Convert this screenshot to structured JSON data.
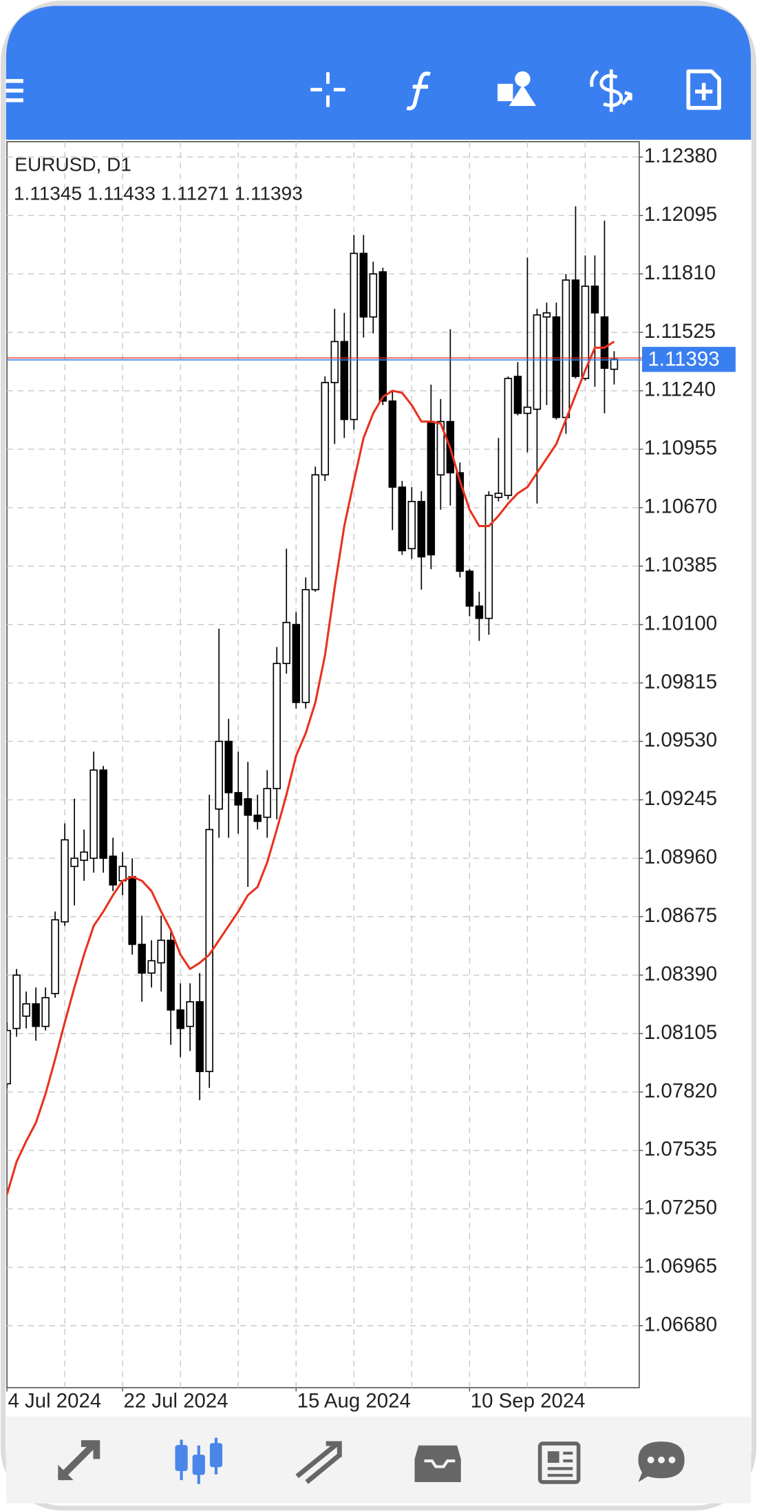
{
  "chart_data": {
    "type": "candlestick",
    "title": "EURUSD, D1",
    "ohlc_text": "1.11345 1.11433 1.11271 1.11393",
    "categories": [
      "4 Jul 2024",
      null,
      null,
      null,
      null,
      null,
      null,
      null,
      null,
      null,
      null,
      null,
      "22 Jul 2024",
      null,
      null,
      null,
      null,
      null,
      null,
      null,
      null,
      null,
      null,
      null,
      null,
      null,
      null,
      null,
      null,
      null,
      "15 Aug 2024",
      null,
      null,
      null,
      null,
      null,
      null,
      null,
      null,
      null,
      null,
      null,
      null,
      null,
      null,
      null,
      null,
      null,
      "10 Sep 2024",
      null,
      null,
      null,
      null,
      null,
      null,
      null,
      null,
      null,
      null,
      null,
      null,
      null,
      null,
      null
    ],
    "open": [
      1.0786,
      1.0813,
      1.0819,
      1.0825,
      1.0814,
      1.083,
      1.0865,
      1.0892,
      1.0895,
      1.0896,
      1.0939,
      1.0897,
      1.0885,
      1.0887,
      1.0854,
      1.084,
      1.0845,
      1.0856,
      1.0822,
      1.0814,
      1.0826,
      1.0792,
      1.092,
      1.0953,
      1.0928,
      1.0925,
      1.0917,
      1.0916,
      1.093,
      1.0991,
      1.101,
      1.0972,
      1.1027,
      1.1083,
      1.1128,
      1.1148,
      1.111,
      1.1191,
      1.116,
      1.1182,
      1.1119,
      1.1077,
      1.1047,
      1.107,
      1.1109,
      1.1083,
      1.1109,
      1.1084,
      1.1036,
      1.1019,
      1.1013,
      1.1072,
      1.1073,
      1.1131,
      1.1113,
      1.1115,
      1.116,
      1.116,
      1.1111,
      1.1178,
      1.113,
      1.1175,
      1.116,
      1.11345
    ],
    "high": [
      1.0816,
      1.0842,
      1.0831,
      1.0833,
      1.0833,
      1.087,
      1.0913,
      1.0925,
      1.091,
      1.0948,
      1.0941,
      1.0906,
      1.0899,
      1.0896,
      1.0868,
      1.0856,
      1.0868,
      1.0861,
      1.0835,
      1.0835,
      1.084,
      1.0927,
      1.1008,
      1.0964,
      1.0948,
      1.0943,
      1.0927,
      1.0939,
      1.0999,
      1.1047,
      1.1016,
      1.1033,
      1.1087,
      1.1131,
      1.1164,
      1.1162,
      1.12,
      1.12,
      1.1187,
      1.1184,
      1.1124,
      1.108,
      1.1077,
      1.1075,
      1.1127,
      1.112,
      1.1154,
      1.1089,
      1.1037,
      1.1026,
      1.1075,
      1.1101,
      1.1131,
      1.1138,
      1.1189,
      1.1164,
      1.1167,
      1.1167,
      1.1181,
      1.1214,
      1.119,
      1.119,
      1.1207,
      1.11433
    ],
    "low": [
      1.0784,
      1.0809,
      1.0813,
      1.0807,
      1.0812,
      1.0828,
      1.0863,
      1.0873,
      1.0885,
      1.0889,
      1.0889,
      1.088,
      1.0878,
      1.0849,
      1.0826,
      1.0833,
      1.0831,
      1.0805,
      1.0799,
      1.0802,
      1.0778,
      1.0784,
      1.0906,
      1.0906,
      1.0908,
      1.0882,
      1.091,
      1.0906,
      1.0915,
      1.0986,
      1.0969,
      1.0969,
      1.1026,
      1.108,
      1.1098,
      1.1101,
      1.1105,
      1.115,
      1.1152,
      1.1117,
      1.1056,
      1.1044,
      1.1042,
      1.1027,
      1.1037,
      1.1066,
      1.1068,
      1.1033,
      1.1014,
      1.1002,
      1.1005,
      1.107,
      1.1071,
      1.1112,
      1.1094,
      1.1069,
      1.1117,
      1.111,
      1.1103,
      1.113,
      1.1129,
      1.1126,
      1.1113,
      1.11271
    ],
    "close": [
      1.0812,
      1.0839,
      1.0825,
      1.0814,
      1.0828,
      1.0866,
      1.0905,
      1.0896,
      1.0899,
      1.0939,
      1.0896,
      1.0883,
      1.0892,
      1.0854,
      1.084,
      1.0846,
      1.0856,
      1.0822,
      1.0813,
      1.0826,
      1.0792,
      1.091,
      1.0953,
      1.0928,
      1.0922,
      1.0917,
      1.0914,
      1.093,
      1.0991,
      1.1011,
      1.0972,
      1.1027,
      1.1083,
      1.1128,
      1.1148,
      1.111,
      1.1191,
      1.116,
      1.1181,
      1.1119,
      1.1077,
      1.1046,
      1.107,
      1.1043,
      1.1044,
      1.1109,
      1.1084,
      1.1036,
      1.1019,
      1.1013,
      1.1073,
      1.1074,
      1.113,
      1.1113,
      1.1116,
      1.1161,
      1.1162,
      1.1111,
      1.1178,
      1.1131,
      1.1175,
      1.1162,
      1.1135,
      1.11393
    ],
    "up_color": "#ffffff",
    "down_color": "#000000",
    "ma": {
      "color": "#e8321e",
      "values": [
        1.0732,
        1.0748,
        1.0758,
        1.0767,
        1.0781,
        1.0798,
        1.0816,
        1.0833,
        1.0849,
        1.0863,
        1.087,
        1.0878,
        1.0885,
        1.0887,
        1.0885,
        1.088,
        1.087,
        1.0861,
        1.0849,
        1.0842,
        1.0845,
        1.0849,
        1.0856,
        1.0863,
        1.087,
        1.0878,
        1.0882,
        1.0894,
        1.091,
        1.0927,
        1.0946,
        1.0957,
        1.0972,
        1.0995,
        1.1028,
        1.1058,
        1.108,
        1.1101,
        1.1113,
        1.1121,
        1.1124,
        1.1123,
        1.1117,
        1.1109,
        1.1109,
        1.1108,
        1.1096,
        1.108,
        1.1066,
        1.1058,
        1.1058,
        1.1063,
        1.1069,
        1.1074,
        1.1077,
        1.1084,
        1.1091,
        1.1098,
        1.111,
        1.1122,
        1.1134,
        1.1145,
        1.1145,
        1.1148
      ]
    },
    "current_price": {
      "value": 1.11393,
      "label": "1.11393"
    },
    "price_tag_color": "#3a7ff0",
    "ylim": [
      1.06378,
      1.12455
    ],
    "yticks": [
      {
        "value": 1.1238,
        "label": "1.12380"
      },
      {
        "value": 1.12095,
        "label": "1.12095"
      },
      {
        "value": 1.1181,
        "label": "1.11810"
      },
      {
        "value": 1.11525,
        "label": "1.11525"
      },
      {
        "value": 1.1124,
        "label": "1.11240"
      },
      {
        "value": 1.10955,
        "label": "1.10955"
      },
      {
        "value": 1.1067,
        "label": "1.10670"
      },
      {
        "value": 1.10385,
        "label": "1.10385"
      },
      {
        "value": 1.101,
        "label": "1.10100"
      },
      {
        "value": 1.09815,
        "label": "1.09815"
      },
      {
        "value": 1.0953,
        "label": "1.09530"
      },
      {
        "value": 1.09245,
        "label": "1.09245"
      },
      {
        "value": 1.0896,
        "label": "1.08960"
      },
      {
        "value": 1.08675,
        "label": "1.08675"
      },
      {
        "value": 1.0839,
        "label": "1.08390"
      },
      {
        "value": 1.08105,
        "label": "1.08105"
      },
      {
        "value": 1.0782,
        "label": "1.07820"
      },
      {
        "value": 1.07535,
        "label": "1.07535"
      },
      {
        "value": 1.0725,
        "label": "1.07250"
      },
      {
        "value": 1.06965,
        "label": "1.06965"
      },
      {
        "value": 1.0668,
        "label": "1.06680"
      }
    ],
    "grid": true
  }
}
